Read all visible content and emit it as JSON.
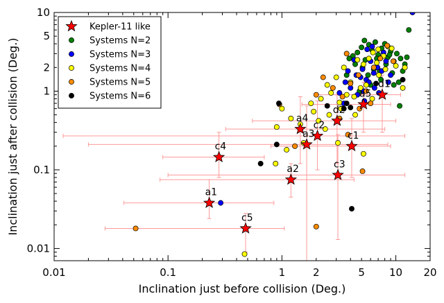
{
  "chart_data": {
    "type": "scatter",
    "xlabel": "Inclination just before collision (Deg.)",
    "ylabel": "Inclination just after collision (Deg.)",
    "x_scale": "log",
    "y_scale": "log",
    "xlim": [
      0.01,
      20
    ],
    "ylim": [
      0.007,
      10
    ],
    "x_ticks": [
      {
        "value": 0.01,
        "label": "0.01"
      },
      {
        "value": 0.1,
        "label": "0.1"
      },
      {
        "value": 1,
        "label": "1"
      },
      {
        "value": 2,
        "label": "2"
      },
      {
        "value": 5,
        "label": "5"
      },
      {
        "value": 10,
        "label": "10"
      },
      {
        "value": 20,
        "label": "20"
      }
    ],
    "y_ticks": [
      {
        "value": 0.01,
        "label": "0.01"
      },
      {
        "value": 0.1,
        "label": "0.1"
      },
      {
        "value": 1,
        "label": "1"
      },
      {
        "value": 2,
        "label": "2"
      },
      {
        "value": 5,
        "label": "5"
      },
      {
        "value": 10,
        "label": "10"
      }
    ],
    "grid": false,
    "legend_position": "top-left",
    "legend": [
      {
        "label": "Kepler-11 like",
        "marker": "star",
        "color": "#ff0000"
      },
      {
        "label": "Systems N=2",
        "marker": "circle",
        "color": "#008000"
      },
      {
        "label": "Systems N=3",
        "marker": "circle",
        "color": "#0000ff"
      },
      {
        "label": "Systems N=4",
        "marker": "circle",
        "color": "#ffff00"
      },
      {
        "label": "Systems N=5",
        "marker": "circle",
        "color": "#ff8c00"
      },
      {
        "label": "Systems N=6",
        "marker": "circle",
        "color": "#000000"
      }
    ],
    "kepler11": {
      "color": "#ff0000",
      "errorbar_color": "#ff9999",
      "points": [
        {
          "label": "a1",
          "x": 0.23,
          "y": 0.038,
          "xerr": [
            0.041,
            0.85
          ],
          "yerr": [
            0.024,
            0.075
          ]
        },
        {
          "label": "c4",
          "x": 0.28,
          "y": 0.145,
          "xerr": [
            0.09,
            0.7
          ],
          "yerr": [
            0.08,
            0.3
          ]
        },
        {
          "label": "c5",
          "x": 0.48,
          "y": 0.018,
          "xerr": [
            0.028,
            1.05
          ],
          "yerr": [
            0.009,
            0.028
          ]
        },
        {
          "label": "a2",
          "x": 1.2,
          "y": 0.075,
          "xerr": [
            0.085,
            4.3
          ],
          "yerr": [
            0.045,
            0.12
          ]
        },
        {
          "label": "a3",
          "x": 1.65,
          "y": 0.21,
          "xerr": [
            0.02,
            8.5
          ],
          "yerr": [
            0.007,
            0.65
          ]
        },
        {
          "label": "a4",
          "x": 1.45,
          "y": 0.33,
          "xerr": [
            0.32,
            8.0
          ],
          "yerr": [
            0.12,
            0.85
          ]
        },
        {
          "label": "c2",
          "x": 2.05,
          "y": 0.27,
          "xerr": [
            0.012,
            12.0
          ],
          "yerr": [
            0.1,
            0.75
          ]
        },
        {
          "label": "d2",
          "x": 3.05,
          "y": 0.42,
          "xerr": [
            0.55,
            10.0
          ],
          "yerr": [
            0.12,
            0.9
          ]
        },
        {
          "label": "c3",
          "x": 3.1,
          "y": 0.086,
          "xerr": [
            0.1,
            12.0
          ],
          "yerr": [
            0.013,
            0.28
          ]
        },
        {
          "label": "c1",
          "x": 4.1,
          "y": 0.2,
          "xerr": [
            0.8,
            9.0
          ],
          "yerr": [
            0.08,
            0.45
          ]
        },
        {
          "label": "a5",
          "x": 5.2,
          "y": 0.68,
          "xerr": [
            1.5,
            9.0
          ],
          "yerr": [
            0.3,
            1.3
          ]
        },
        {
          "label": "d1",
          "x": 7.6,
          "y": 0.9,
          "xerr": [
            2.0,
            11.0
          ],
          "yerr": [
            0.3,
            1.6
          ]
        }
      ]
    },
    "systems": [
      {
        "name": "N=2",
        "color": "#008000",
        "points": [
          [
            4.2,
            2.8
          ],
          [
            4.6,
            3.1
          ],
          [
            5.0,
            3.6
          ],
          [
            5.4,
            2.5
          ],
          [
            5.8,
            3.9
          ],
          [
            6.2,
            3.3
          ],
          [
            6.6,
            4.2
          ],
          [
            7.0,
            2.9
          ],
          [
            7.5,
            3.5
          ],
          [
            8.0,
            4.0
          ],
          [
            8.5,
            2.7
          ],
          [
            9.0,
            3.2
          ],
          [
            9.6,
            2.4
          ],
          [
            10.2,
            3.0
          ],
          [
            11.0,
            2.6
          ],
          [
            12.5,
            2.7
          ],
          [
            13.0,
            6.0
          ],
          [
            4.4,
            2.2
          ],
          [
            5.1,
            2.0
          ],
          [
            5.7,
            1.6
          ],
          [
            6.4,
            1.9
          ],
          [
            7.2,
            1.8
          ],
          [
            8.2,
            2.2
          ],
          [
            9.3,
            1.7
          ],
          [
            10.6,
            1.3
          ],
          [
            10.8,
            0.65
          ],
          [
            6.0,
            1.2
          ],
          [
            7.4,
            1.4
          ],
          [
            9.6,
            1.2
          ],
          [
            3.7,
            1.6
          ],
          [
            4.8,
            1.0
          ],
          [
            11.5,
            1.8
          ],
          [
            5.3,
            4.4
          ],
          [
            6.8,
            2.6
          ],
          [
            8.8,
            2.9
          ],
          [
            3.9,
            2.6
          ],
          [
            12.0,
            2.2
          ]
        ]
      },
      {
        "name": "N=3",
        "color": "#0000ff",
        "points": [
          [
            4.5,
            1.6
          ],
          [
            5.1,
            1.9
          ],
          [
            5.5,
            1.4
          ],
          [
            6.0,
            2.4
          ],
          [
            6.4,
            1.7
          ],
          [
            6.9,
            2.0
          ],
          [
            7.5,
            1.8
          ],
          [
            8.2,
            2.4
          ],
          [
            9.0,
            1.6
          ],
          [
            3.6,
            1.3
          ],
          [
            4.0,
            1.1
          ],
          [
            4.6,
            0.9
          ],
          [
            5.2,
            1.0
          ],
          [
            5.8,
            1.3
          ],
          [
            6.5,
            1.1
          ],
          [
            7.1,
            0.95
          ],
          [
            3.2,
            0.95
          ],
          [
            3.8,
            1.8
          ],
          [
            4.3,
            2.5
          ],
          [
            5.6,
            3.4
          ],
          [
            6.2,
            3.7
          ],
          [
            7.8,
            3.1
          ],
          [
            14.0,
            10.0
          ],
          [
            0.29,
            0.038
          ],
          [
            4.9,
            1.5
          ],
          [
            8.6,
            1.3
          ],
          [
            5.3,
            0.75
          ],
          [
            3.5,
            0.7
          ]
        ]
      },
      {
        "name": "N=4",
        "color": "#ffff00",
        "points": [
          [
            2.5,
            1.2
          ],
          [
            3.0,
            1.5
          ],
          [
            3.5,
            2.0
          ],
          [
            4.0,
            1.3
          ],
          [
            4.6,
            2.5
          ],
          [
            5.2,
            2.2
          ],
          [
            5.8,
            2.6
          ],
          [
            6.3,
            3.1
          ],
          [
            7.0,
            3.4
          ],
          [
            7.8,
            2.8
          ],
          [
            8.5,
            3.7
          ],
          [
            9.2,
            3.5
          ],
          [
            10.0,
            2.1
          ],
          [
            11.5,
            1.1
          ],
          [
            12.0,
            2.0
          ],
          [
            2.2,
            0.8
          ],
          [
            2.7,
            0.95
          ],
          [
            3.2,
            0.72
          ],
          [
            3.7,
            0.9
          ],
          [
            4.3,
            0.85
          ],
          [
            4.9,
            1.1
          ],
          [
            5.5,
            1.2
          ],
          [
            6.2,
            0.8
          ],
          [
            7.1,
            1.6
          ],
          [
            1.9,
            0.55
          ],
          [
            2.1,
            0.42
          ],
          [
            2.6,
            0.5
          ],
          [
            3.3,
            0.6
          ],
          [
            1.45,
            0.38
          ],
          [
            1.2,
            0.45
          ],
          [
            1.0,
            0.6
          ],
          [
            1.55,
            0.22
          ],
          [
            1.1,
            0.18
          ],
          [
            0.9,
            0.35
          ],
          [
            0.88,
            0.12
          ],
          [
            3.1,
            0.22
          ],
          [
            5.2,
            0.16
          ],
          [
            0.47,
            0.0085
          ],
          [
            1.8,
            0.7
          ],
          [
            2.4,
            0.33
          ],
          [
            4.4,
            0.5
          ],
          [
            6.8,
            2.3
          ],
          [
            8.1,
            1.9
          ]
        ]
      },
      {
        "name": "N=5",
        "color": "#ff8c00",
        "points": [
          [
            2.3,
            1.5
          ],
          [
            2.8,
            1.1
          ],
          [
            3.4,
            0.85
          ],
          [
            4.0,
            1.25
          ],
          [
            4.7,
            1.6
          ],
          [
            5.5,
            1.0
          ],
          [
            6.4,
            2.0
          ],
          [
            7.3,
            2.6
          ],
          [
            8.4,
            3.8
          ],
          [
            3.7,
            3.0
          ],
          [
            4.8,
            0.6
          ],
          [
            3.2,
            0.45
          ],
          [
            2.0,
            0.9
          ],
          [
            0.95,
            0.68
          ],
          [
            1.3,
            0.2
          ],
          [
            2.0,
            0.019
          ],
          [
            5.1,
            0.096
          ],
          [
            0.052,
            0.018
          ],
          [
            3.8,
            0.28
          ],
          [
            6.0,
            0.7
          ],
          [
            9.5,
            2.4
          ]
        ]
      },
      {
        "name": "N=6",
        "color": "#000000",
        "points": [
          [
            0.94,
            0.7
          ],
          [
            0.65,
            0.12
          ],
          [
            0.9,
            0.21
          ],
          [
            2.5,
            0.65
          ],
          [
            3.5,
            0.6
          ],
          [
            4.0,
            0.62
          ],
          [
            11.5,
            1.4
          ],
          [
            4.1,
            0.032
          ],
          [
            3.7,
            0.7
          ],
          [
            6.7,
            1.25
          ]
        ]
      }
    ]
  }
}
